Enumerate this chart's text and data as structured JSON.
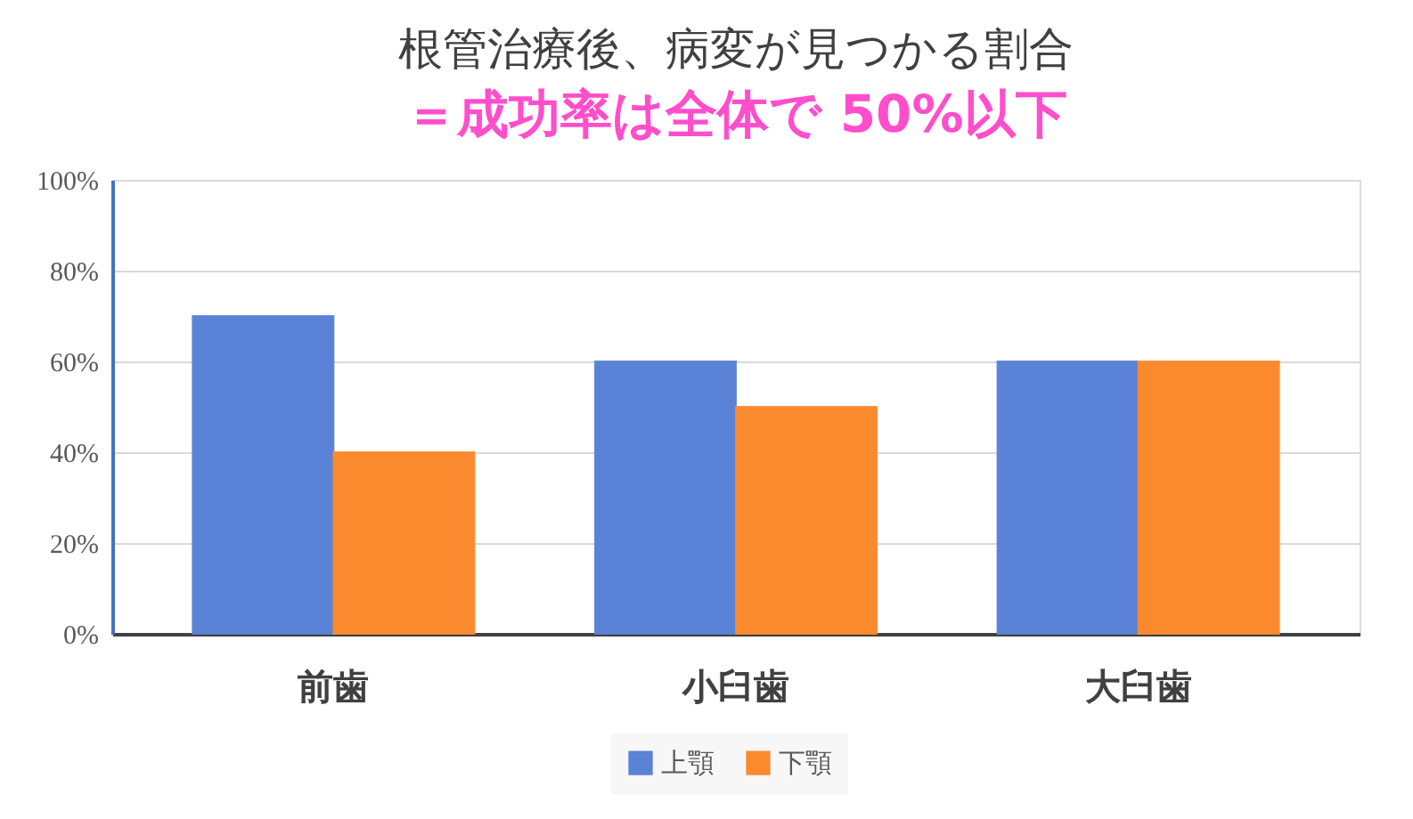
{
  "chart_data": {
    "type": "bar",
    "title": "根管治療後、病変が見つかる割合",
    "subtitle": "＝成功率は全体で 50%以下",
    "categories": [
      "前歯",
      "小臼歯",
      "大臼歯"
    ],
    "series": [
      {
        "name": "上顎",
        "color": "#5a82d6",
        "values": [
          70,
          60,
          60
        ]
      },
      {
        "name": "下顎",
        "color": "#fb8a2f",
        "values": [
          40,
          50,
          60
        ]
      }
    ],
    "ylim": [
      0,
      100
    ],
    "yticks": [
      {
        "value": 0,
        "label": "0%"
      },
      {
        "value": 20,
        "label": "20%"
      },
      {
        "value": 40,
        "label": "40%"
      },
      {
        "value": 60,
        "label": "60%"
      },
      {
        "value": 80,
        "label": "80%"
      },
      {
        "value": 100,
        "label": "100%"
      }
    ],
    "grid": "y",
    "legend": "bottom"
  }
}
